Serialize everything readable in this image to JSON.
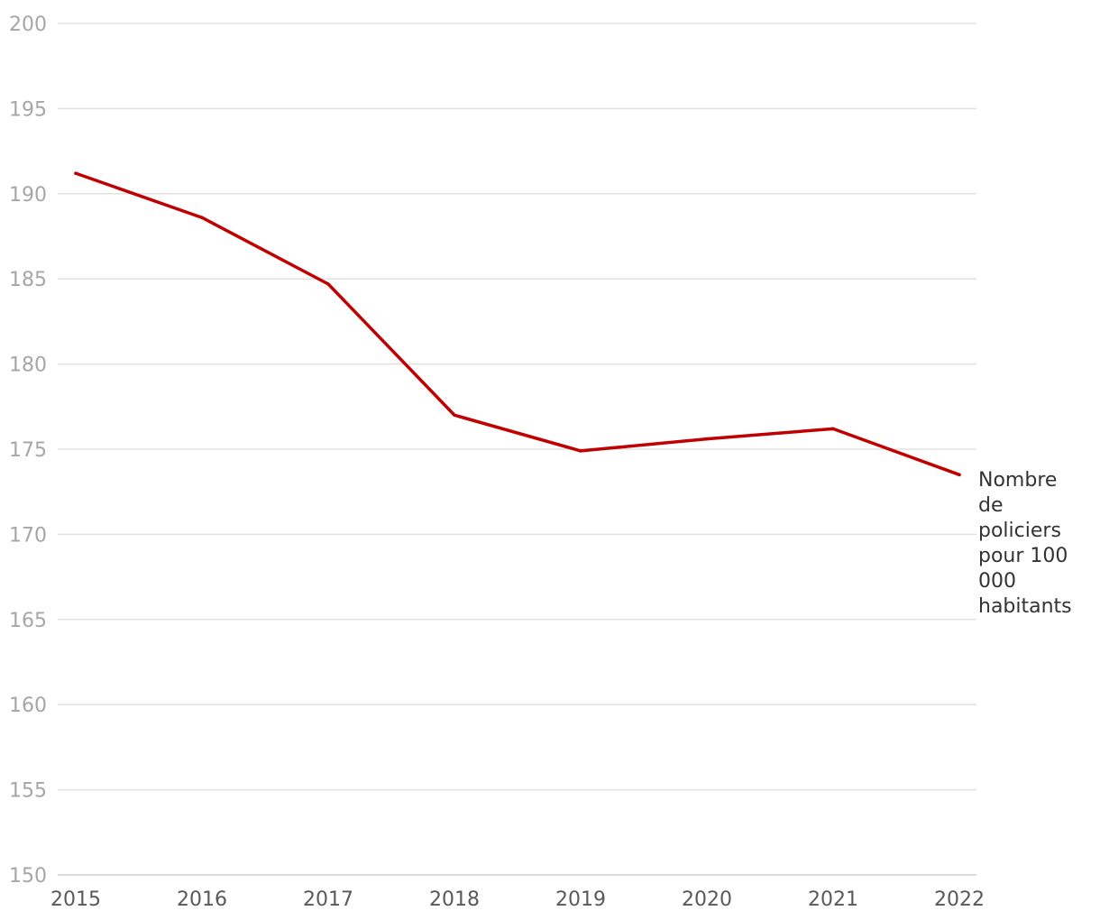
{
  "chart_data": {
    "type": "line",
    "title": "",
    "xlabel": "",
    "ylabel": "",
    "x": [
      "2015",
      "2016",
      "2017",
      "2018",
      "2019",
      "2020",
      "2021",
      "2022"
    ],
    "ylim": [
      150,
      200
    ],
    "yticks": [
      150,
      155,
      160,
      165,
      170,
      175,
      180,
      185,
      190,
      195,
      200
    ],
    "grid": true,
    "series": [
      {
        "name": "Nombre de policiers pour 100 000 habitants",
        "label_lines": [
          "Nombre",
          "de",
          "policiers",
          "pour 100",
          "000",
          "habitants"
        ],
        "color": "#c00000",
        "values": [
          191.2,
          188.6,
          184.7,
          177.0,
          174.9,
          175.6,
          176.2,
          173.5
        ]
      }
    ]
  }
}
